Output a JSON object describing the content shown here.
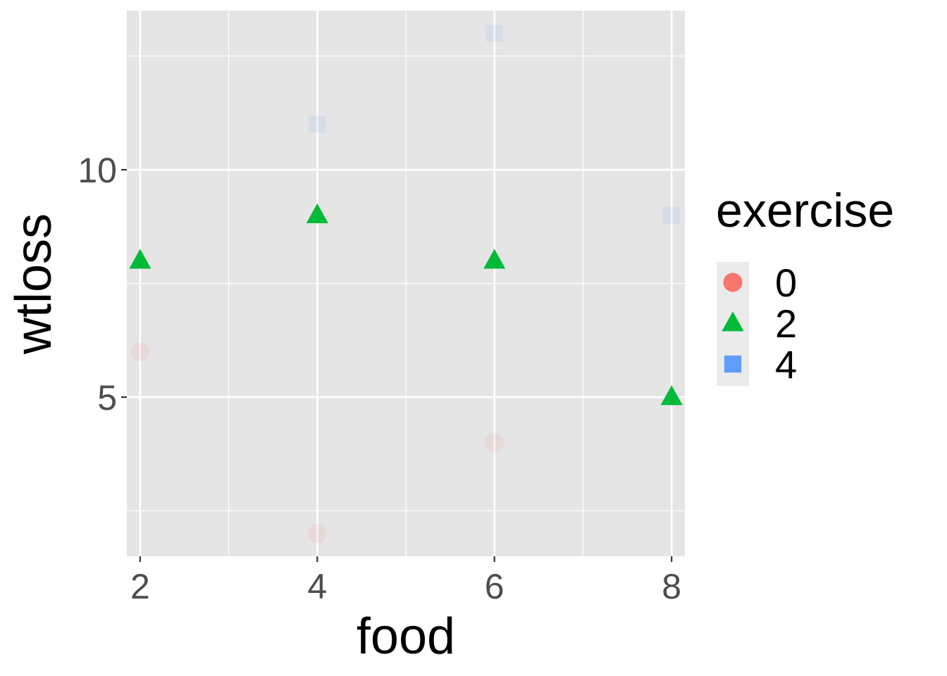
{
  "chart_data": {
    "type": "scatter",
    "xlabel": "food",
    "ylabel": "wtloss",
    "xlim": [
      1.85,
      8.15
    ],
    "ylim": [
      1.5,
      13.5
    ],
    "x_ticks": [
      2,
      4,
      6,
      8
    ],
    "y_ticks": [
      5,
      10
    ],
    "x_minor_ticks": [
      3,
      5,
      7
    ],
    "y_minor_ticks": [
      2.5,
      7.5,
      12.5
    ],
    "grid": true,
    "legend": {
      "title": "exercise",
      "position": "right"
    },
    "series": [
      {
        "name": "0",
        "shape": "circle",
        "color": "#F8766D",
        "opacity": 0.1,
        "points": [
          {
            "x": 2,
            "y": 6
          },
          {
            "x": 4,
            "y": 2
          },
          {
            "x": 6,
            "y": 4
          }
        ]
      },
      {
        "name": "2",
        "shape": "triangle",
        "color": "#00BA38",
        "opacity": 1.0,
        "points": [
          {
            "x": 2,
            "y": 8
          },
          {
            "x": 4,
            "y": 9
          },
          {
            "x": 6,
            "y": 8
          },
          {
            "x": 8,
            "y": 5
          }
        ]
      },
      {
        "name": "4",
        "shape": "square",
        "color": "#619CFF",
        "opacity": 0.1,
        "points": [
          {
            "x": 4,
            "y": 11
          },
          {
            "x": 6,
            "y": 13
          },
          {
            "x": 8,
            "y": 9
          }
        ]
      }
    ],
    "panel_background": "#e5e5e5",
    "legend_key_background": "#ebebeb"
  }
}
